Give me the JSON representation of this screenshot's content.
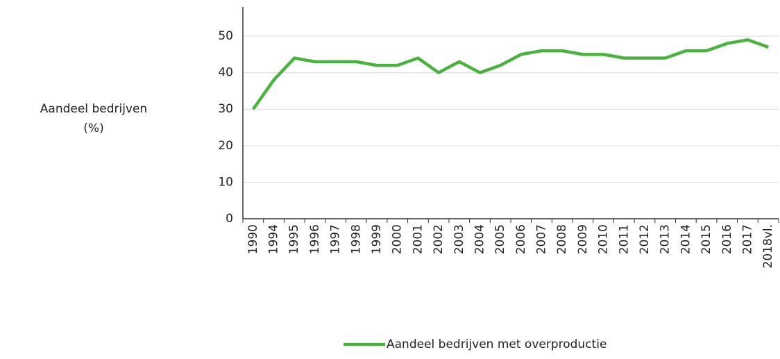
{
  "chart_data": {
    "type": "line",
    "ylabel": [
      "Aandeel bedrijven",
      "(%)"
    ],
    "categories": [
      "1990",
      "1994",
      "1995",
      "1996",
      "1997",
      "1998",
      "1999",
      "2000",
      "2001",
      "2002",
      "2003",
      "2004",
      "2005",
      "2006",
      "2007",
      "2008",
      "2009",
      "2010",
      "2011",
      "2012",
      "2013",
      "2014",
      "2015",
      "2016",
      "2017",
      "2018vl."
    ],
    "series": [
      {
        "name": "Aandeel bedrijven met overproductie",
        "color": "#48b33d",
        "values": [
          30,
          38,
          44,
          43,
          43,
          43,
          42,
          42,
          44,
          40,
          43,
          40,
          42,
          45,
          46,
          46,
          45,
          45,
          44,
          44,
          44,
          46,
          46,
          48,
          49,
          47
        ]
      }
    ],
    "ylim": [
      0,
      58
    ],
    "yticks": [
      0,
      10,
      20,
      30,
      40,
      50
    ],
    "grid": true
  }
}
